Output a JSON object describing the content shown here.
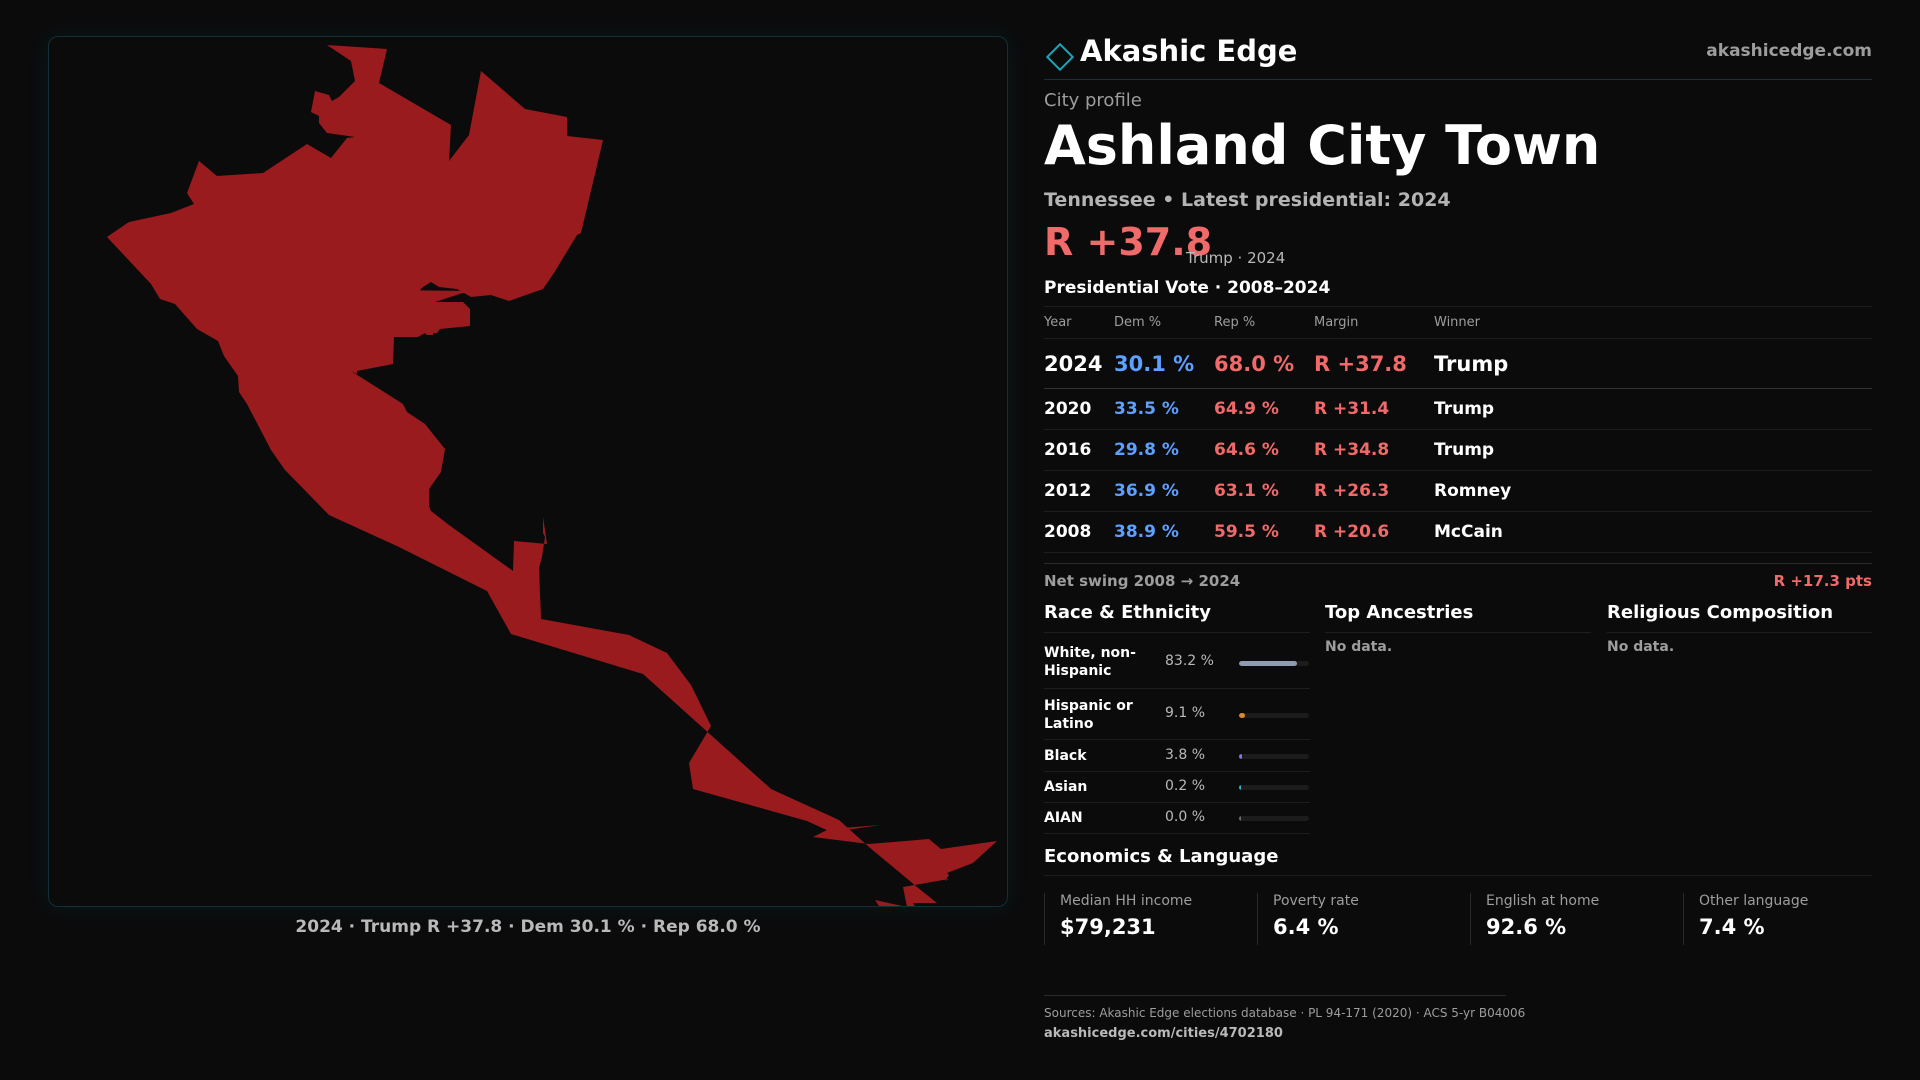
{
  "map": {
    "fill_color": "#991b1e",
    "caption": "2024 · Trump R +37.8 · Dem 30.1 % · Rep 68.0 %"
  },
  "brand": {
    "name": "Akashic Edge",
    "url": "akashicedge.com",
    "icon": "diamond-icon",
    "accent": "#1aa7b8"
  },
  "profile": {
    "eyebrow": "City profile",
    "title": "Ashland City Town",
    "subtitle": "Tennessee • Latest presidential: 2024",
    "margin": "R +37.8",
    "margin_note": "Trump · 2024"
  },
  "vote_table": {
    "title": "Presidential Vote · 2008–2024",
    "headers": {
      "year": "Year",
      "dem": "Dem %",
      "rep": "Rep %",
      "margin": "Margin",
      "winner": "Winner"
    },
    "rows": [
      {
        "year": "2024",
        "dem": "30.1 %",
        "rep": "68.0 %",
        "margin": "R +37.8",
        "winner": "Trump"
      },
      {
        "year": "2020",
        "dem": "33.5 %",
        "rep": "64.9 %",
        "margin": "R +31.4",
        "winner": "Trump"
      },
      {
        "year": "2016",
        "dem": "29.8 %",
        "rep": "64.6 %",
        "margin": "R +34.8",
        "winner": "Trump"
      },
      {
        "year": "2012",
        "dem": "36.9 %",
        "rep": "63.1 %",
        "margin": "R +26.3",
        "winner": "Romney"
      },
      {
        "year": "2008",
        "dem": "38.9 %",
        "rep": "59.5 %",
        "margin": "R +20.6",
        "winner": "McCain"
      }
    ],
    "dem_color": "#5ea0ff",
    "rep_color": "#f06a6a"
  },
  "swing": {
    "label": "Net swing 2008 → 2024",
    "value": "R +17.3 pts"
  },
  "race": {
    "title": "Race & Ethnicity",
    "items": [
      {
        "label": "White, non-Hispanic",
        "value": "83.2 %",
        "share": 83.2,
        "color": "#8e9bb0"
      },
      {
        "label": "Hispanic or Latino",
        "value": "9.1 %",
        "share": 9.1,
        "color": "#d98a2b"
      },
      {
        "label": "Black",
        "value": "3.8 %",
        "share": 3.8,
        "color": "#8a72e0"
      },
      {
        "label": "Asian",
        "value": "0.2 %",
        "share": 0.2,
        "color": "#2fb6c8"
      },
      {
        "label": "AIAN",
        "value": "0.0 %",
        "share": 0.0,
        "color": "#6c6c6c"
      }
    ]
  },
  "ancestries": {
    "title": "Top Ancestries",
    "empty": "No data."
  },
  "religion": {
    "title": "Religious Composition",
    "empty": "No data."
  },
  "economics": {
    "title": "Economics & Language",
    "items": [
      {
        "label": "Median HH income",
        "value": "$79,231"
      },
      {
        "label": "Poverty rate",
        "value": "6.4 %"
      },
      {
        "label": "English at home",
        "value": "92.6 %"
      },
      {
        "label": "Other language",
        "value": "7.4 %"
      }
    ]
  },
  "footer": {
    "sources": "Sources: Akashic Edge elections database · PL 94-171 (2020) · ACS 5-yr B04006",
    "url": "akashicedge.com/cities/4702180"
  }
}
